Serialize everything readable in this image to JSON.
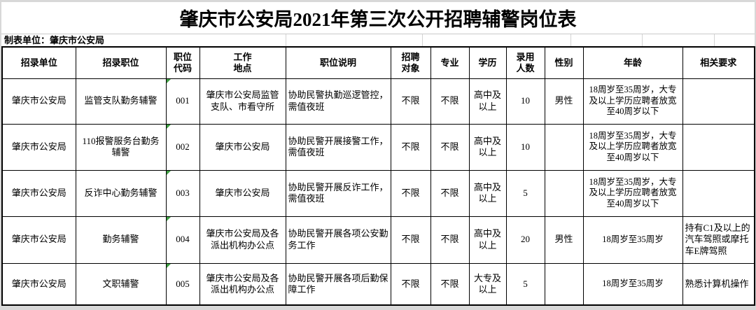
{
  "title": "肇庆市公安局2021年第三次公开招聘辅警岗位表",
  "prepared_by": "制表单位：肇庆市公安局",
  "table": {
    "column_keys": [
      "unit",
      "position",
      "code",
      "location",
      "description",
      "target",
      "major",
      "education",
      "count",
      "gender",
      "age",
      "requirements"
    ],
    "headers": [
      "招录单位",
      "招录职位",
      "职位\n代码",
      "工作\n地点",
      "职位说明",
      "招聘\n对象",
      "专业",
      "学历",
      "录用\n人数",
      "性别",
      "年龄",
      "相关要求"
    ],
    "rows": [
      [
        "肇庆市公安局",
        "监管支队勤务辅警",
        "001",
        "肇庆市公安局监管支队、市看守所",
        "协助民警执勤巡逻管控，需值夜班",
        "不限",
        "不限",
        "高中及以上",
        "10",
        "男性",
        "18周岁至35周岁，大专及以上学历应聘者放宽至40周岁以下",
        ""
      ],
      [
        "肇庆市公安局",
        "110报警服务台勤务辅警",
        "002",
        "肇庆市公安局",
        "协助民警开展接警工作，需值夜班",
        "不限",
        "不限",
        "高中及以上",
        "10",
        "",
        "18周岁至35周岁，大专及以上学历应聘者放宽至40周岁以下",
        ""
      ],
      [
        "肇庆市公安局",
        "反诈中心勤务辅警",
        "003",
        "肇庆市公安局",
        "协助民警开展反诈工作，需值夜班",
        "不限",
        "不限",
        "高中及以上",
        "5",
        "",
        "18周岁至35周岁，大专及以上学历应聘者放宽至40周岁以下",
        ""
      ],
      [
        "肇庆市公安局",
        "勤务辅警",
        "004",
        "肇庆市公安局及各派出机构办公点",
        "协助民警开展各项公安勤务工作",
        "不限",
        "不限",
        "高中及以上",
        "20",
        "男性",
        "18周岁至35周岁",
        "持有C1及以上的汽车驾照或摩托车E牌驾照"
      ],
      [
        "肇庆市公安局",
        "文职辅警",
        "005",
        "肇庆市公安局及各派出机构办公点",
        "协助民警开展各项后勤保障工作",
        "不限",
        "不限",
        "大专及以上",
        "5",
        "",
        "18周岁至35周岁",
        "熟悉计算机操作"
      ]
    ]
  },
  "icons": {
    "error_marker": "excel-green-triangle"
  },
  "colors": {
    "border": "#000000",
    "text": "#000000",
    "marker_green": "#3c9d40",
    "frame": "#d8d8d8",
    "faint_grid": "#d4d4d4"
  }
}
